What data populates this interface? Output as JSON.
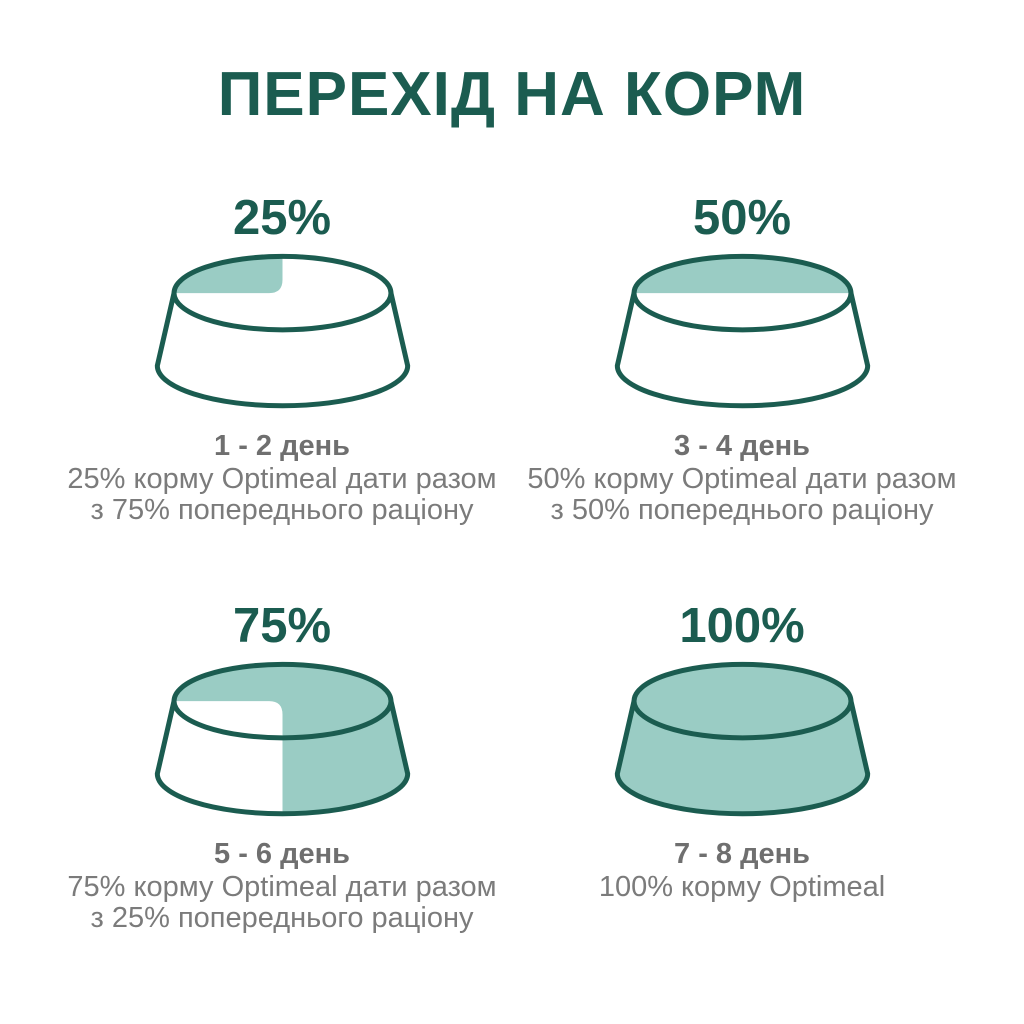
{
  "title": "ПЕРЕХІД НА КОРМ",
  "colors": {
    "accent_dark": "#1B5C50",
    "fill_light": "#9ACCC4",
    "day_text_gray": "#6F6F6F",
    "description_text_gray": "#7B7B7B",
    "background": "#FFFFFF"
  },
  "steps": [
    {
      "percent_label": "25%",
      "fill_percent": 25,
      "day_range": "1 - 2 день",
      "description_line1": "25% корму Optimeal дати разом",
      "description_line2": "з 75% попереднього раціону"
    },
    {
      "percent_label": "50%",
      "fill_percent": 50,
      "day_range": "3 - 4 день",
      "description_line1": "50% корму Optimeal дати разом",
      "description_line2": "з 50% попереднього раціону"
    },
    {
      "percent_label": "75%",
      "fill_percent": 75,
      "day_range": "5 - 6 день",
      "description_line1": "75% корму Optimeal дати разом",
      "description_line2": "з 25% попереднього раціону"
    },
    {
      "percent_label": "100%",
      "fill_percent": 100,
      "day_range": "7 - 8 день",
      "description_line1": "100% корму Optimeal",
      "description_line2": ""
    }
  ]
}
